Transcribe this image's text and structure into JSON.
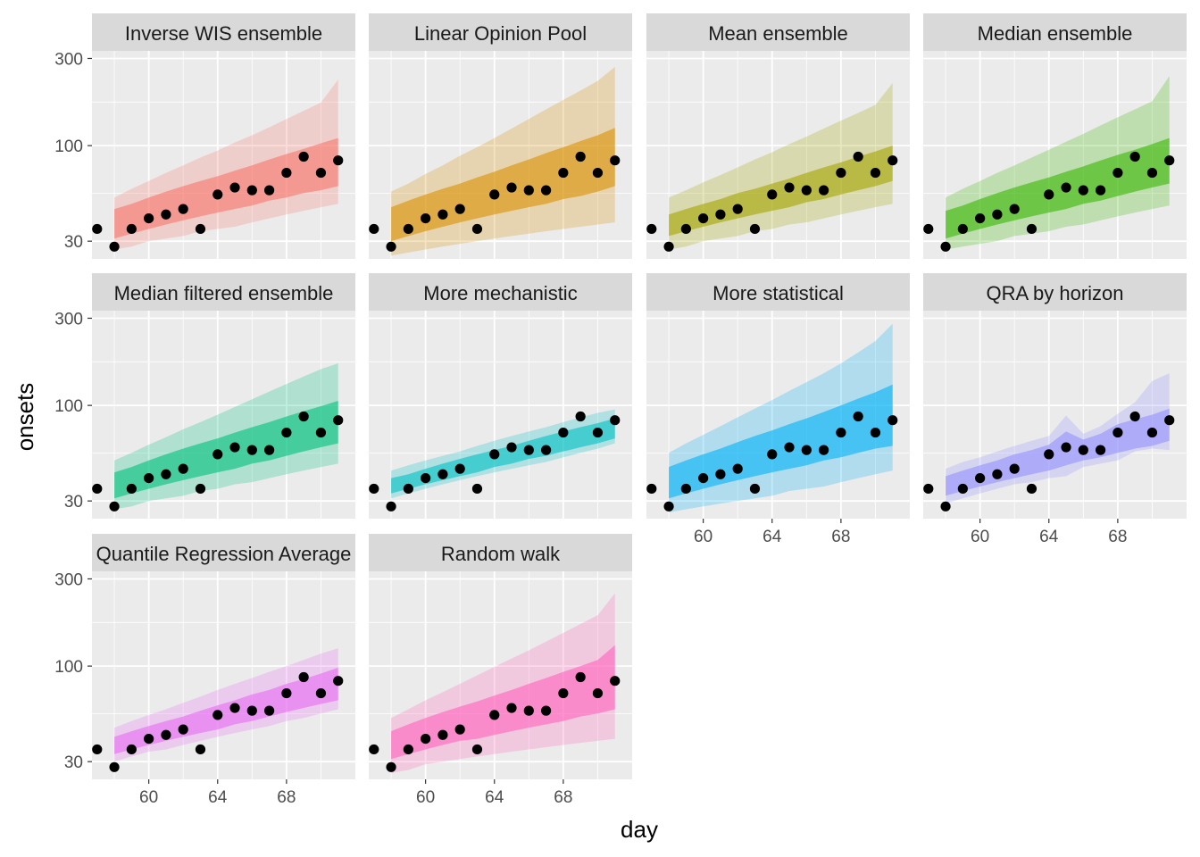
{
  "chart_data": {
    "type": "area",
    "xlabel": "day",
    "ylabel": "onsets",
    "y_scale": "log10",
    "ylim": [
      24,
      330
    ],
    "xlim": [
      56.7,
      72
    ],
    "y_ticks": [
      30,
      100,
      300
    ],
    "x_ticks": [
      60,
      64,
      68
    ],
    "grid": true,
    "observed": {
      "x": [
        57,
        58,
        59,
        60,
        61,
        62,
        63,
        64,
        65,
        66,
        67,
        68,
        69,
        70,
        71
      ],
      "y": [
        35,
        28,
        35,
        40,
        42,
        45,
        35,
        54,
        59,
        57,
        57,
        71,
        87,
        71,
        83
      ]
    },
    "forecast_days": [
      58,
      59,
      60,
      61,
      62,
      63,
      64,
      65,
      66,
      67,
      68,
      69,
      70,
      71
    ],
    "panels": [
      {
        "title": "Inverse WIS ensemble",
        "color": "#F8766D",
        "inner_lower": [
          31,
          33,
          35,
          37,
          39,
          41,
          43,
          45,
          47,
          50,
          52,
          55,
          57,
          60
        ],
        "inner_upper": [
          45,
          48,
          52,
          56,
          60,
          64,
          68,
          73,
          78,
          84,
          90,
          96,
          103,
          110
        ],
        "outer_lower": [
          27,
          28,
          30,
          31,
          32,
          34,
          35,
          36,
          38,
          40,
          42,
          44,
          46,
          48
        ],
        "outer_upper": [
          52,
          58,
          64,
          71,
          78,
          86,
          94,
          104,
          114,
          126,
          140,
          155,
          172,
          230
        ]
      },
      {
        "title": "Linear Opinion Pool",
        "color": "#D89000",
        "inner_lower": [
          30,
          32,
          34,
          36,
          38,
          40,
          42,
          44,
          46,
          48,
          51,
          53,
          56,
          60
        ],
        "inner_upper": [
          46,
          50,
          54,
          58,
          62,
          67,
          72,
          78,
          84,
          91,
          98,
          106,
          114,
          125
        ],
        "outer_lower": [
          25,
          26,
          27,
          28,
          29,
          30,
          31,
          32,
          33,
          34,
          35,
          36,
          37,
          38
        ],
        "outer_upper": [
          56,
          62,
          70,
          78,
          88,
          98,
          110,
          124,
          140,
          158,
          178,
          200,
          226,
          270
        ]
      },
      {
        "title": "Mean ensemble",
        "color": "#A3A500",
        "inner_lower": [
          32,
          34,
          36,
          38,
          40,
          42,
          44,
          46,
          49,
          51,
          54,
          57,
          60,
          64
        ],
        "inner_upper": [
          42,
          45,
          48,
          51,
          55,
          58,
          62,
          66,
          71,
          76,
          81,
          87,
          93,
          100
        ],
        "outer_lower": [
          27,
          28,
          30,
          31,
          32,
          34,
          35,
          37,
          38,
          40,
          42,
          44,
          46,
          48
        ],
        "outer_upper": [
          52,
          57,
          63,
          69,
          76,
          84,
          92,
          102,
          112,
          124,
          137,
          151,
          167,
          220
        ]
      },
      {
        "title": "Median ensemble",
        "color": "#39B600",
        "inner_lower": [
          31,
          33,
          35,
          37,
          39,
          41,
          43,
          45,
          48,
          50,
          53,
          56,
          59,
          62
        ],
        "inner_upper": [
          44,
          47,
          51,
          55,
          59,
          63,
          67,
          72,
          77,
          83,
          89,
          95,
          102,
          110
        ],
        "outer_lower": [
          27,
          28,
          29,
          30,
          32,
          33,
          34,
          36,
          37,
          39,
          41,
          43,
          45,
          47
        ],
        "outer_upper": [
          52,
          58,
          64,
          71,
          78,
          86,
          95,
          105,
          116,
          129,
          143,
          158,
          175,
          240
        ]
      },
      {
        "title": "Median filtered ensemble",
        "color": "#00BF7D",
        "inner_lower": [
          31,
          33,
          35,
          37,
          39,
          41,
          43,
          45,
          48,
          50,
          53,
          56,
          59,
          62
        ],
        "inner_upper": [
          43,
          46,
          50,
          54,
          58,
          62,
          66,
          71,
          76,
          81,
          87,
          93,
          99,
          106
        ],
        "outer_lower": [
          27,
          28,
          30,
          31,
          32,
          34,
          35,
          37,
          38,
          40,
          42,
          44,
          46,
          48
        ],
        "outer_upper": [
          50,
          55,
          61,
          67,
          74,
          81,
          89,
          98,
          108,
          119,
          131,
          144,
          158,
          170
        ]
      },
      {
        "title": "More mechanistic",
        "color": "#00BFC4",
        "inner_lower": [
          33,
          35,
          37,
          39,
          41,
          43,
          46,
          48,
          51,
          53,
          56,
          59,
          62,
          66
        ],
        "inner_upper": [
          40,
          42,
          45,
          48,
          51,
          54,
          57,
          60,
          64,
          68,
          72,
          76,
          80,
          85
        ],
        "outer_lower": [
          31,
          33,
          35,
          37,
          39,
          41,
          43,
          45,
          47,
          49,
          52,
          55,
          58,
          62
        ],
        "outer_upper": [
          44,
          47,
          50,
          53,
          56,
          60,
          64,
          68,
          72,
          76,
          81,
          86,
          91,
          95
        ]
      },
      {
        "title": "More statistical",
        "color": "#00B0F6",
        "inner_lower": [
          31,
          33,
          35,
          37,
          39,
          41,
          43,
          45,
          47,
          50,
          52,
          55,
          58,
          60
        ],
        "inner_upper": [
          46,
          50,
          54,
          58,
          63,
          68,
          73,
          79,
          85,
          92,
          100,
          109,
          118,
          130
        ],
        "outer_lower": [
          26,
          27,
          28,
          29,
          30,
          31,
          32,
          34,
          35,
          36,
          38,
          40,
          42,
          44
        ],
        "outer_upper": [
          55,
          62,
          69,
          77,
          86,
          96,
          107,
          120,
          134,
          150,
          170,
          195,
          225,
          280
        ]
      },
      {
        "title": "QRA by horizon",
        "color": "#9590FF",
        "inner_lower": [
          32,
          34,
          36,
          38,
          40,
          42,
          44,
          47,
          50,
          52,
          55,
          58,
          60,
          64
        ],
        "inner_upper": [
          41,
          44,
          47,
          50,
          54,
          57,
          61,
          72,
          65,
          70,
          79,
          84,
          89,
          96
        ],
        "outer_lower": [
          29,
          31,
          33,
          35,
          37,
          38,
          40,
          41,
          46,
          48,
          50,
          56,
          58,
          57
        ],
        "outer_upper": [
          45,
          49,
          52,
          56,
          60,
          64,
          68,
          88,
          70,
          77,
          90,
          104,
          136,
          150
        ]
      },
      {
        "title": "Quantile Regression Average",
        "color": "#E76BF3",
        "inner_lower": [
          33,
          35,
          37,
          39,
          41,
          43,
          45,
          48,
          50,
          53,
          56,
          59,
          62,
          65
        ],
        "inner_upper": [
          41,
          44,
          47,
          50,
          53,
          57,
          61,
          65,
          70,
          74,
          80,
          85,
          91,
          98
        ],
        "outer_lower": [
          30,
          32,
          34,
          35,
          37,
          39,
          41,
          43,
          45,
          47,
          50,
          52,
          55,
          58
        ],
        "outer_upper": [
          46,
          50,
          54,
          58,
          63,
          68,
          74,
          80,
          86,
          93,
          100,
          108,
          117,
          125
        ]
      },
      {
        "title": "Random walk",
        "color": "#FF62BC",
        "inner_lower": [
          31,
          33,
          35,
          37,
          39,
          40,
          42,
          44,
          46,
          48,
          50,
          53,
          55,
          58
        ],
        "inner_upper": [
          44,
          48,
          52,
          56,
          60,
          64,
          69,
          74,
          80,
          86,
          93,
          100,
          108,
          130
        ],
        "outer_lower": [
          26,
          27,
          29,
          30,
          31,
          32,
          33,
          34,
          35,
          36,
          37,
          38,
          39,
          40
        ],
        "outer_upper": [
          52,
          58,
          65,
          72,
          80,
          89,
          99,
          110,
          122,
          136,
          152,
          170,
          190,
          250
        ]
      }
    ]
  }
}
